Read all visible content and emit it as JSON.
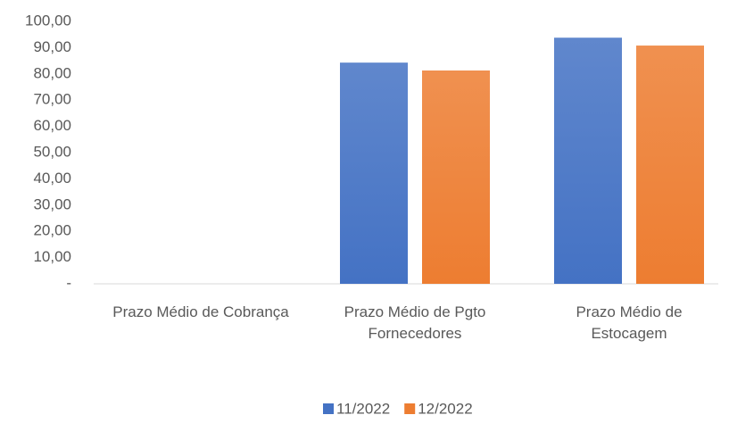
{
  "chart_data": {
    "type": "bar",
    "categories": [
      "Prazo Médio de Cobrança",
      "Prazo Médio de Pgto Fornecedores",
      "Prazo Médio de Estocagem"
    ],
    "series": [
      {
        "name": "11/2022",
        "color": "#4472c4",
        "values": [
          0,
          84.3,
          93.8
        ]
      },
      {
        "name": "12/2022",
        "color": "#ed7d31",
        "values": [
          0,
          81.3,
          90.8
        ]
      }
    ],
    "ylim": [
      0,
      100
    ],
    "yticks": [
      {
        "value": 0,
        "label": "-"
      },
      {
        "value": 10,
        "label": "10,00"
      },
      {
        "value": 20,
        "label": "20,00"
      },
      {
        "value": 30,
        "label": "30,00"
      },
      {
        "value": 40,
        "label": "40,00"
      },
      {
        "value": 50,
        "label": "50,00"
      },
      {
        "value": 60,
        "label": "60,00"
      },
      {
        "value": 70,
        "label": "70,00"
      },
      {
        "value": 80,
        "label": "80,00"
      },
      {
        "value": 90,
        "label": "90,00"
      },
      {
        "value": 100,
        "label": "100,00"
      }
    ],
    "grid": false,
    "legend": "bottom"
  }
}
